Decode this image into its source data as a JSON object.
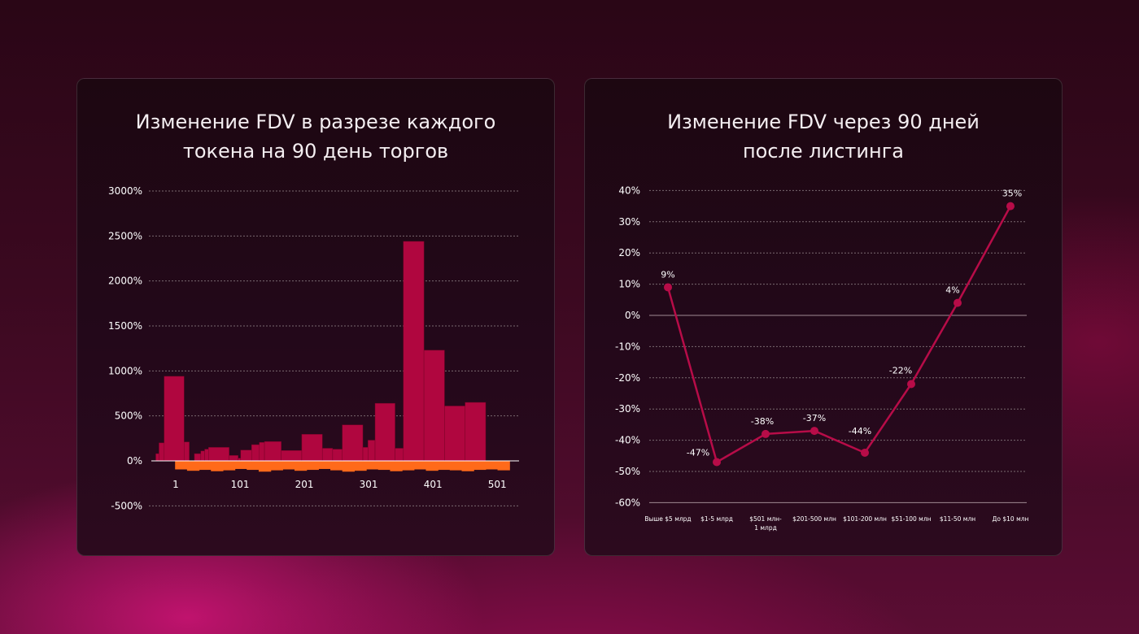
{
  "colors": {
    "bar_positive": "#b0063f",
    "bar_negative": "#ff6a1a",
    "line": "#b70c48",
    "zero_line": "#a08a93",
    "grid": "#7a6a70"
  },
  "chart_data": [
    {
      "type": "bar",
      "title": "Изменение FDV в разрезе каждого токена на 90 день торгов",
      "title_lines": [
        "Изменение FDV в разрезе каждого",
        "токена на 90 день торгов"
      ],
      "xlabel": "",
      "ylabel": "",
      "ylim": [
        -500,
        3000
      ],
      "yticks": [
        3000,
        2500,
        2000,
        1500,
        1000,
        500,
        0,
        -500
      ],
      "ytick_labels": [
        "3000%",
        "2500%",
        "2000%",
        "1500%",
        "1000%",
        "500%",
        "0%",
        "-500%"
      ],
      "xlim": [
        0,
        530
      ],
      "xticks": [
        1,
        101,
        201,
        301,
        401,
        501
      ],
      "xtick_labels": [
        "1",
        "101",
        "201",
        "301",
        "401",
        "501"
      ],
      "grid": true,
      "series": [
        {
          "values": [
            {
              "x0": -30,
              "x1": -25,
              "v": 80
            },
            {
              "x0": -25,
              "x1": -17,
              "v": 200
            },
            {
              "x0": -17,
              "x1": 14,
              "v": 940
            },
            {
              "x0": 14,
              "x1": 22,
              "v": 210
            },
            {
              "x0": 30,
              "x1": 40,
              "v": 80
            },
            {
              "x0": 40,
              "x1": 46,
              "v": 110
            },
            {
              "x0": 46,
              "x1": 52,
              "v": 130
            },
            {
              "x0": 52,
              "x1": 84,
              "v": 150
            },
            {
              "x0": 84,
              "x1": 98,
              "v": 60
            },
            {
              "x0": 98,
              "x1": 102,
              "v": 30
            },
            {
              "x0": 102,
              "x1": 119,
              "v": 120
            },
            {
              "x0": 119,
              "x1": 131,
              "v": 180
            },
            {
              "x0": 131,
              "x1": 139,
              "v": 205
            },
            {
              "x0": 139,
              "x1": 165,
              "v": 215
            },
            {
              "x0": 165,
              "x1": 197,
              "v": 115
            },
            {
              "x0": 197,
              "x1": 229,
              "v": 295
            },
            {
              "x0": 229,
              "x1": 245,
              "v": 140
            },
            {
              "x0": 245,
              "x1": 260,
              "v": 130
            },
            {
              "x0": 260,
              "x1": 292,
              "v": 400
            },
            {
              "x0": 292,
              "x1": 300,
              "v": 150
            },
            {
              "x0": 300,
              "x1": 311,
              "v": 230
            },
            {
              "x0": 311,
              "x1": 342,
              "v": 640
            },
            {
              "x0": 342,
              "x1": 355,
              "v": 140
            },
            {
              "x0": 355,
              "x1": 387,
              "v": 2440
            },
            {
              "x0": 387,
              "x1": 419,
              "v": 1230
            },
            {
              "x0": 419,
              "x1": 451,
              "v": 610
            },
            {
              "x0": 451,
              "x1": 483,
              "v": 650
            }
          ]
        },
        {
          "start": 0,
          "end": 520,
          "values": [
            -95,
            -110,
            -100,
            -115,
            -105,
            -90,
            -100,
            -120,
            -105,
            -95,
            -110,
            -100,
            -90,
            -105,
            -120,
            -110,
            -95,
            -100,
            -115,
            -105,
            -95,
            -110,
            -100,
            -105,
            -115,
            -100,
            -95,
            -105
          ]
        }
      ]
    },
    {
      "type": "line",
      "title": "Изменение FDV через 90 дней после листинга",
      "title_lines": [
        "Изменение FDV через 90 дней",
        "после листинга"
      ],
      "xlabel": "",
      "ylabel": "",
      "ylim": [
        -60,
        40
      ],
      "yticks": [
        40,
        30,
        20,
        10,
        0,
        -10,
        -20,
        -30,
        -40,
        -50,
        -60
      ],
      "ytick_labels": [
        "40%",
        "30%",
        "20%",
        "10%",
        "0%",
        "-10%",
        "-20%",
        "-30%",
        "-40%",
        "-50%",
        "-60%"
      ],
      "grid": true,
      "categories": [
        "Выше $5 млрд",
        "$1-5 млрд",
        "$501 млн-\n1 млрд",
        "$201-500 млн",
        "$101-200 млн",
        "$51-100 млн",
        "$11-50 млн",
        "До $10 млн"
      ],
      "values": [
        9,
        -47,
        -38,
        -37,
        -44,
        -22,
        4,
        35
      ],
      "data_labels": [
        "9%",
        "-47%",
        "-38%",
        "-37%",
        "-44%",
        "-22%",
        "4%",
        "35%"
      ]
    }
  ]
}
